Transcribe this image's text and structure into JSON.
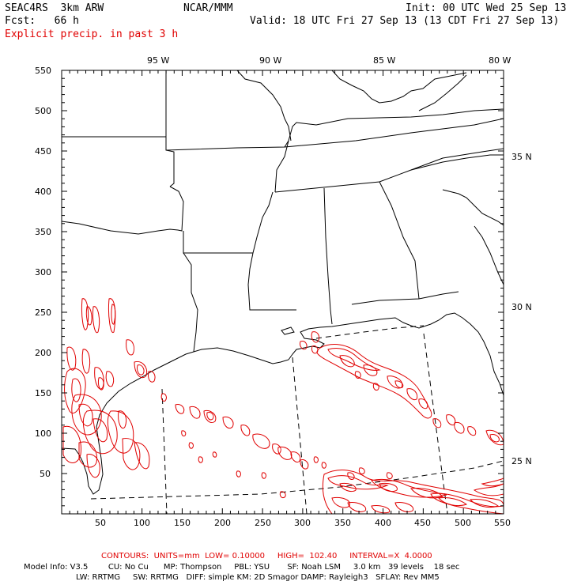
{
  "header": {
    "model": "SEAC4RS  3km ARW",
    "center": "NCAR/MMM",
    "init": "Init: 00 UTC Wed 25 Sep 13",
    "fcst": "Fcst:   66 h",
    "valid": "Valid: 18 UTC Fri 27 Sep 13 (13 CDT Fri 27 Sep 13)",
    "field": "Explicit precip. in past 3 h"
  },
  "axes": {
    "top_lon_labels": [
      "95 W",
      "90 W",
      "85 W",
      "80 W"
    ],
    "right_lat_labels": [
      "35 N",
      "30 N",
      "25 N"
    ],
    "x_ticks": [
      "50",
      "100",
      "150",
      "200",
      "250",
      "300",
      "350",
      "400",
      "450",
      "500",
      "550"
    ],
    "y_ticks": [
      "50",
      "100",
      "150",
      "200",
      "250",
      "300",
      "350",
      "400",
      "450",
      "500",
      "550"
    ],
    "grid_min": 0,
    "grid_max": 550
  },
  "contours": {
    "line": "CONTOURS:  UNITS=mm  LOW= 0.10000     HIGH=  102.40     INTERVAL=X  4.0000"
  },
  "model_info": {
    "line1": "Model Info: V3.5        CU: No Cu      MP: Thompson     PBL: YSU       SF: Noah LSM     3.0 km   39 levels    18 sec",
    "line2": "LW: RRTMG     SW: RRTMG   DIFF: simple KM: 2D Smagor DAMP: Rayleigh3   SFLAY: Rev MM5"
  },
  "colors": {
    "precip": "#e00000",
    "map_lines": "#000000",
    "background": "#ffffff"
  }
}
